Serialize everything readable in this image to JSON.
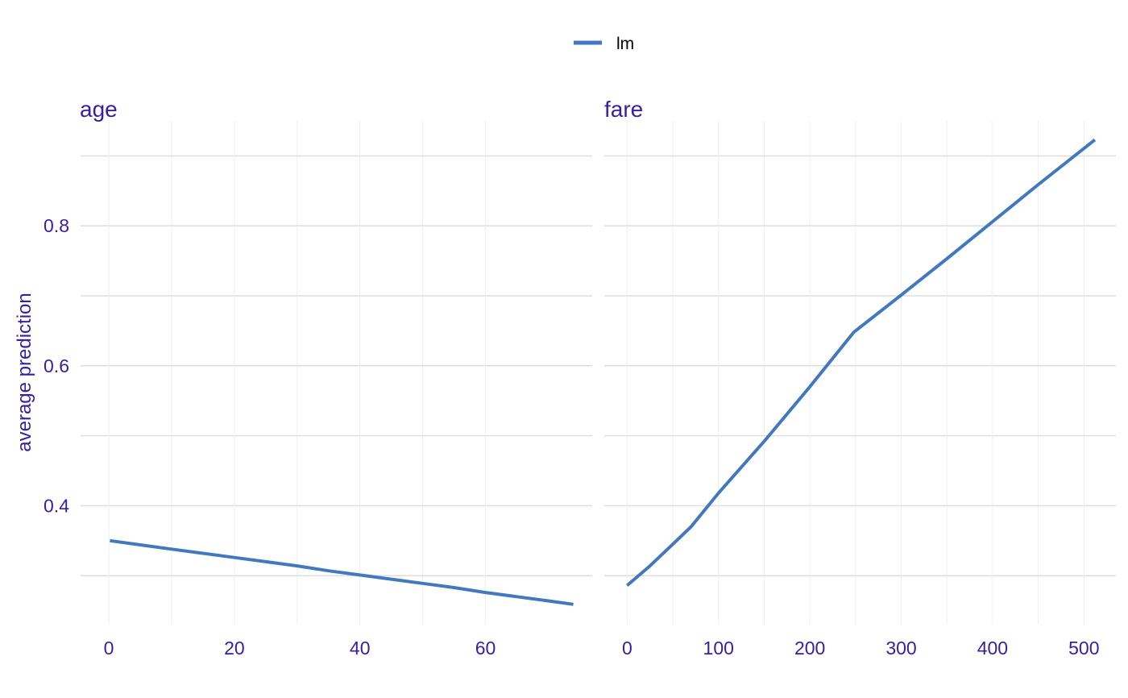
{
  "chart_data": {
    "type": "line",
    "legend": {
      "position": "top",
      "entries": [
        {
          "name": "lm",
          "color": "#4378bf"
        }
      ]
    },
    "ylabel": "average prediction",
    "ylim": [
      0.23,
      0.95
    ],
    "y_ticks": [
      0.4,
      0.6,
      0.8
    ],
    "y_tick_labels": [
      "0.4",
      "0.6",
      "0.8"
    ],
    "grid": true,
    "colors": {
      "line": "#4378bf",
      "text": "#371ea3"
    },
    "panels": [
      {
        "title": "age",
        "xlim": [
          -4.5,
          77
        ],
        "x_ticks": [
          0,
          20,
          40,
          60
        ],
        "x_tick_labels": [
          "0",
          "20",
          "40",
          "60"
        ],
        "series": [
          {
            "name": "lm",
            "x": [
              0.17,
              5,
              10,
              15,
              20,
              25,
              30,
              35,
              40,
              45,
              50,
              55,
              60,
              65,
              70,
              74
            ],
            "y": [
              0.35,
              0.344,
              0.338,
              0.332,
              0.326,
              0.32,
              0.314,
              0.307,
              0.301,
              0.295,
              0.289,
              0.283,
              0.276,
              0.27,
              0.264,
              0.259
            ]
          }
        ]
      },
      {
        "title": "fare",
        "xlim": [
          -25,
          535
        ],
        "x_ticks": [
          0,
          100,
          200,
          300,
          400,
          500
        ],
        "x_tick_labels": [
          "0",
          "100",
          "200",
          "300",
          "400",
          "500"
        ],
        "series": [
          {
            "name": "lm",
            "x": [
              0,
              25,
              50,
              70,
              100,
              150,
              200,
              248,
              300,
              350,
              400,
              450,
              512
            ],
            "y": [
              0.286,
              0.314,
              0.345,
              0.37,
              0.418,
              0.492,
              0.57,
              0.648,
              0.701,
              0.753,
              0.806,
              0.859,
              0.923
            ]
          }
        ]
      }
    ]
  }
}
